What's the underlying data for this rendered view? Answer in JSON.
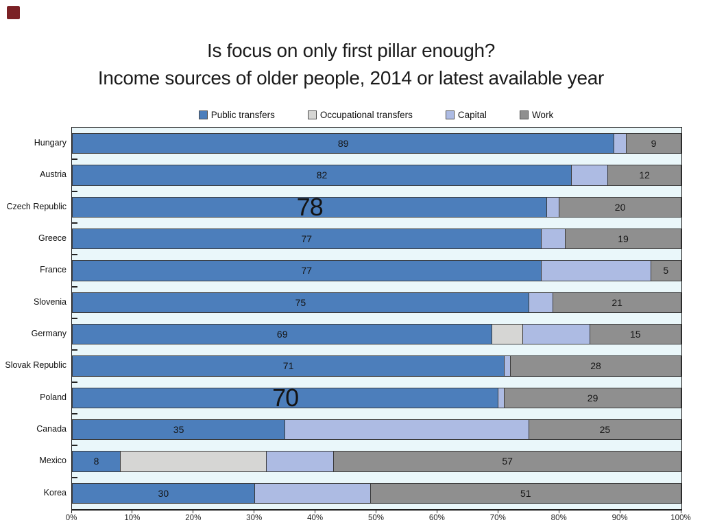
{
  "slide": {
    "title_line1": "Is focus on only first pillar enough?",
    "title_line2": "Income sources of older people, 2014 or latest available year",
    "corner_marker_color": "#7B2125"
  },
  "colors": {
    "plot_background": "#EAF7FA",
    "segment_border": "#3a3a3a"
  },
  "chart_data": {
    "type": "bar",
    "stacked": true,
    "orientation": "horizontal",
    "categories": [
      "Hungary",
      "Austria",
      "Czech Republic",
      "Greece",
      "France",
      "Slovenia",
      "Germany",
      "Slovak Republic",
      "Poland",
      "Canada",
      "Mexico",
      "Korea"
    ],
    "series": [
      {
        "name": "Public transfers",
        "color": "#4C7EBB",
        "labeled": true,
        "values": [
          89,
          82,
          78,
          77,
          77,
          75,
          69,
          71,
          70,
          35,
          8,
          30
        ]
      },
      {
        "name": "Occupational transfers",
        "color": "#D6D6D4",
        "labeled": false,
        "values": [
          0,
          0,
          0,
          0,
          0,
          0,
          5,
          0,
          0,
          0,
          24,
          0
        ]
      },
      {
        "name": "Capital",
        "color": "#ADBBE3",
        "labeled": false,
        "values": [
          2,
          6,
          2,
          4,
          18,
          4,
          11,
          1,
          1,
          40,
          11,
          19
        ]
      },
      {
        "name": "Work",
        "color": "#8F8F8F",
        "labeled": true,
        "values": [
          9,
          12,
          20,
          19,
          5,
          21,
          15,
          28,
          29,
          25,
          57,
          51
        ]
      }
    ],
    "large_label_countries": [
      "Czech Republic",
      "Poland"
    ],
    "x_tick_labels": [
      "0%",
      "10%",
      "20%",
      "30%",
      "40%",
      "50%",
      "60%",
      "70%",
      "80%",
      "90%",
      "100%"
    ],
    "xlim": [
      0,
      100
    ],
    "grid": false,
    "legend_position": "top"
  }
}
